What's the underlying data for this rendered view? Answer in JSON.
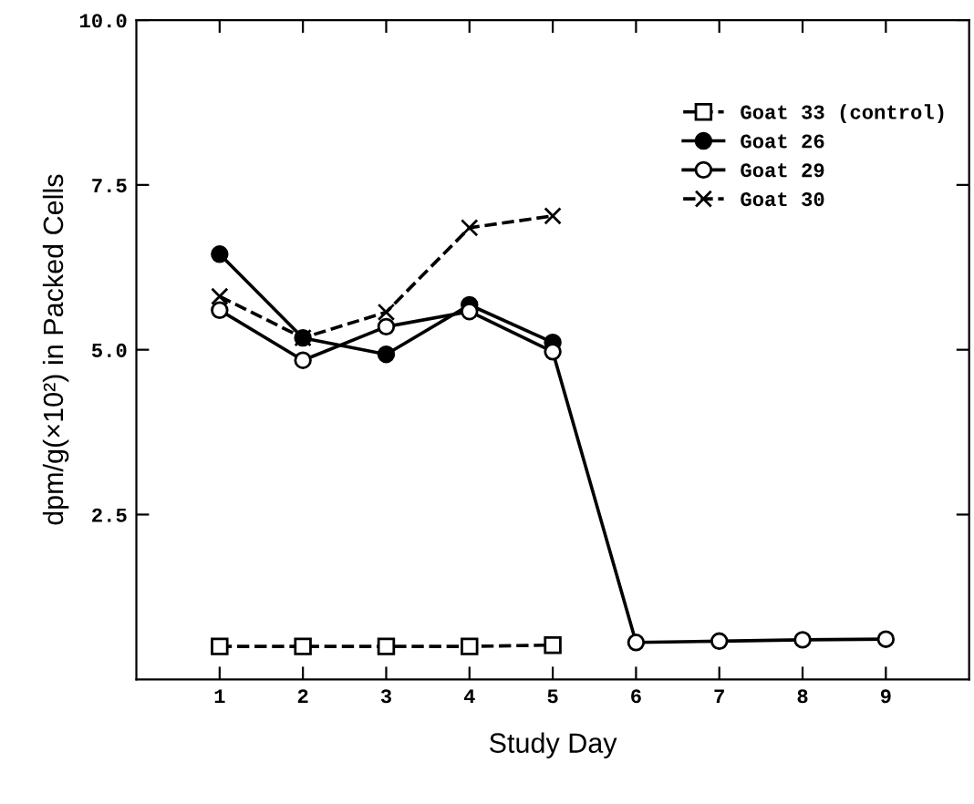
{
  "chart_data": {
    "type": "line",
    "xlabel": "Study Day",
    "ylabel": "dpm/g(×10²) in Packed Cells",
    "xlim": [
      0,
      10
    ],
    "xticks": [
      1,
      2,
      3,
      4,
      5,
      6,
      7,
      8,
      9
    ],
    "ylim": [
      0,
      10
    ],
    "yticks": [
      {
        "value": 2.5,
        "label": "2.5"
      },
      {
        "value": 5,
        "label": "5.0"
      },
      {
        "value": 7.5,
        "label": "7.5"
      },
      {
        "value": 10,
        "label": "10.0"
      }
    ],
    "grid": false,
    "legend": "top right",
    "series": [
      {
        "name": "Goat 33 (control)",
        "color": "#000000",
        "marker": "square",
        "line_style": "dashed",
        "x": [
          1,
          2,
          3,
          4,
          5
        ],
        "values": [
          0.5,
          0.5,
          0.5,
          0.5,
          0.52
        ]
      },
      {
        "name": "Goat 26",
        "color": "#000000",
        "marker": "circle",
        "line_style": "solid",
        "x": [
          1,
          2,
          3,
          4,
          5
        ],
        "values": [
          6.45,
          5.18,
          4.93,
          5.68,
          5.11
        ]
      },
      {
        "name": "Goat 29",
        "color": "#000000",
        "marker": "circle",
        "line_style": "solid",
        "x": [
          1,
          2,
          3,
          4,
          5,
          6,
          7,
          8,
          9
        ],
        "values": [
          5.6,
          4.84,
          5.35,
          5.58,
          4.97,
          0.56,
          0.58,
          0.6,
          0.61
        ]
      },
      {
        "name": "Goat 30",
        "color": "#000000",
        "marker": "cross",
        "line_style": "dashed",
        "x": [
          1,
          2,
          3,
          4,
          5
        ],
        "values": [
          5.81,
          5.18,
          5.57,
          6.85,
          7.03
        ]
      }
    ]
  }
}
